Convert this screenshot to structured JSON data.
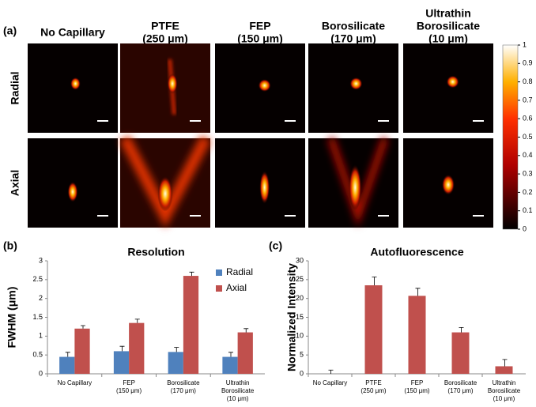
{
  "panel_a": {
    "label": "(a)",
    "columns": [
      [
        "No Capillary"
      ],
      [
        "PTFE",
        "(250 μm)"
      ],
      [
        "FEP",
        "(150 μm)"
      ],
      [
        "Borosilicate",
        "(170 μm)"
      ],
      [
        "Ultrathin",
        "Borosilicate",
        "(10 μm)"
      ]
    ],
    "rows": [
      "Radial",
      "Axial"
    ],
    "colorbar": {
      "lim": [
        0,
        1
      ],
      "ticks": [
        0,
        0.1,
        0.2,
        0.3,
        0.4,
        0.5,
        0.6,
        0.7,
        0.8,
        0.9,
        1
      ]
    }
  },
  "chart_data": [
    {
      "type": "bar",
      "panel_label": "(b)",
      "title": "Resolution",
      "ylabel": "FWHM (μm)",
      "categories": [
        [
          "No Capillary"
        ],
        [
          "FEP",
          "(150 μm)"
        ],
        [
          "Borosilicate",
          "(170 μm)"
        ],
        [
          "Ultrathin",
          "Borosilicate",
          "(10 μm)"
        ]
      ],
      "series": [
        {
          "name": "Radial",
          "color": "#4f81bd",
          "values": [
            0.45,
            0.6,
            0.58,
            0.45
          ],
          "errors": [
            0.12,
            0.13,
            0.12,
            0.12
          ]
        },
        {
          "name": "Axial",
          "color": "#c0504d",
          "values": [
            1.2,
            1.35,
            2.6,
            1.1
          ],
          "errors": [
            0.08,
            0.1,
            0.1,
            0.1
          ]
        }
      ],
      "ylim": [
        0,
        3
      ],
      "yticks": [
        0,
        0.5,
        1,
        1.5,
        2,
        2.5,
        3
      ],
      "legend": "upper right"
    },
    {
      "type": "bar",
      "panel_label": "(c)",
      "title": "Autofluorescence",
      "ylabel": "Normalized Intensity",
      "categories": [
        [
          "No Capillary"
        ],
        [
          "PTFE",
          "(250 μm)"
        ],
        [
          "FEP",
          "(150 μm)"
        ],
        [
          "Borosilicate",
          "(170 μm)"
        ],
        [
          "Ultrathin",
          "Borosilicate",
          "(10 μm)"
        ]
      ],
      "values": [
        0,
        23.5,
        20.7,
        11,
        2
      ],
      "errors": [
        1,
        2.2,
        2,
        1.3,
        1.8
      ],
      "color": "#c0504d",
      "ylim": [
        0,
        30
      ],
      "yticks": [
        0,
        5,
        10,
        15,
        20,
        25,
        30
      ]
    }
  ]
}
